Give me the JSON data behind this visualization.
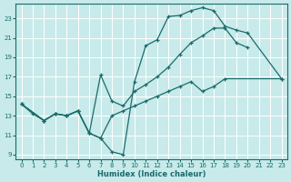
{
  "xlabel": "Humidex (Indice chaleur)",
  "bg_color": "#c8eaea",
  "line_color": "#1a6b6b",
  "grid_color": "#ffffff",
  "xlim": [
    -0.5,
    23.5
  ],
  "ylim": [
    8.5,
    24.5
  ],
  "xticks": [
    0,
    1,
    2,
    3,
    4,
    5,
    6,
    7,
    8,
    9,
    10,
    11,
    12,
    13,
    14,
    15,
    16,
    17,
    18,
    19,
    20,
    21,
    22,
    23
  ],
  "yticks": [
    9,
    11,
    13,
    15,
    17,
    19,
    21,
    23
  ],
  "curve1_x": [
    0,
    1,
    2,
    3,
    4,
    5,
    6,
    7,
    8,
    9,
    10,
    11,
    12,
    13,
    14,
    15,
    16,
    17,
    18,
    19,
    20,
    23
  ],
  "curve1_y": [
    14.2,
    13.2,
    12.5,
    13.2,
    13.0,
    13.5,
    11.2,
    10.7,
    9.3,
    9.0,
    16.5,
    20.2,
    20.8,
    23.2,
    23.3,
    23.8,
    24.1,
    23.8,
    22.2,
    21.8,
    21.5,
    16.8
  ],
  "curve2_x": [
    0,
    2,
    3,
    4,
    5,
    6,
    7,
    8,
    9,
    10,
    11,
    12,
    13,
    14,
    15,
    16,
    17,
    18,
    19,
    20
  ],
  "curve2_y": [
    14.2,
    12.5,
    13.2,
    13.0,
    13.5,
    11.2,
    17.2,
    14.5,
    14.0,
    15.5,
    16.2,
    17.0,
    18.0,
    19.3,
    20.5,
    21.2,
    22.0,
    22.0,
    20.5,
    20.0
  ],
  "curve3_x": [
    0,
    2,
    3,
    4,
    5,
    6,
    7,
    8,
    9,
    10,
    11,
    12,
    13,
    14,
    15,
    16,
    17,
    18,
    23
  ],
  "curve3_y": [
    14.2,
    12.5,
    13.2,
    13.0,
    13.5,
    11.2,
    10.7,
    13.0,
    13.5,
    14.0,
    14.5,
    15.0,
    15.5,
    16.0,
    16.5,
    15.5,
    16.0,
    16.8,
    16.8
  ]
}
